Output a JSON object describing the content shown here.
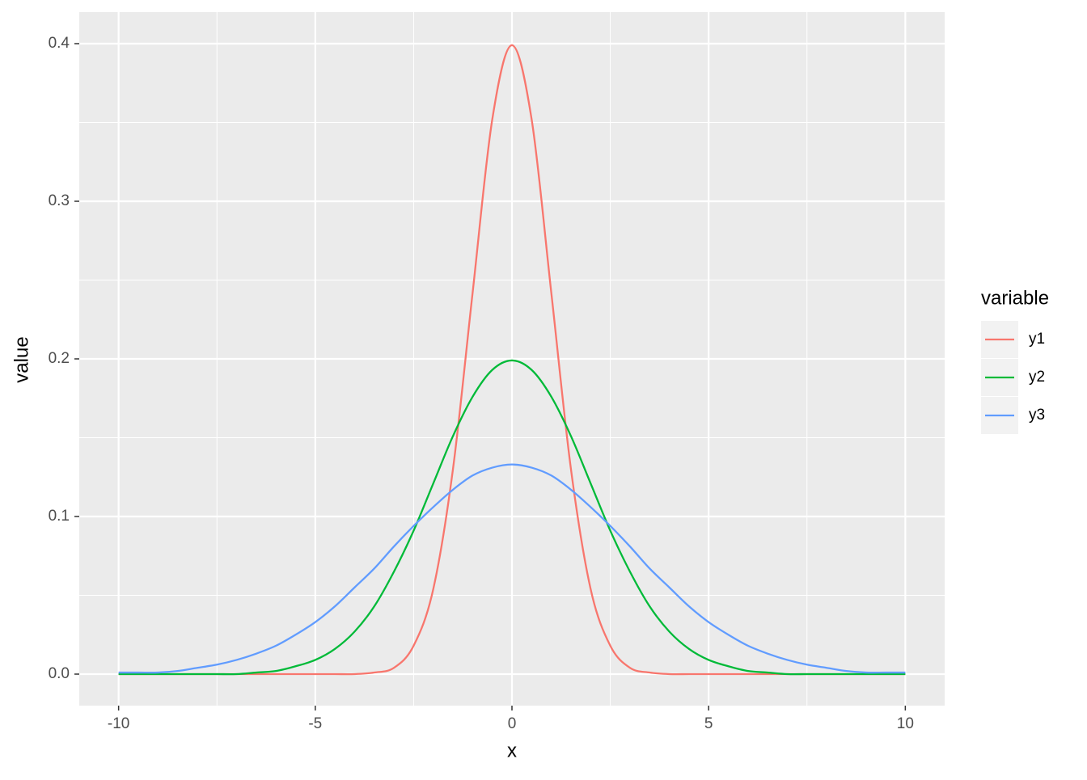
{
  "chart_data": {
    "type": "line",
    "x_label": "x",
    "y_label": "value",
    "legend_title": "variable",
    "x": [
      -10,
      -9.5,
      -9,
      -8.5,
      -8,
      -7.5,
      -7,
      -6.5,
      -6,
      -5.5,
      -5,
      -4.5,
      -4,
      -3.5,
      -3,
      -2.5,
      -2,
      -1.5,
      -1,
      -0.5,
      0,
      0.5,
      1,
      1.5,
      2,
      2.5,
      3,
      3.5,
      4,
      4.5,
      5,
      5.5,
      6,
      6.5,
      7,
      7.5,
      8,
      8.5,
      9,
      9.5,
      10
    ],
    "series": [
      {
        "name": "y1",
        "color": "#F8766D",
        "values": [
          0,
          0,
          0,
          0,
          0,
          0,
          0,
          0,
          0,
          0,
          0,
          0,
          0,
          0.001,
          0.004,
          0.018,
          0.054,
          0.13,
          0.242,
          0.352,
          0.399,
          0.352,
          0.242,
          0.13,
          0.054,
          0.018,
          0.004,
          0.001,
          0,
          0,
          0,
          0,
          0,
          0,
          0,
          0,
          0,
          0,
          0,
          0,
          0
        ]
      },
      {
        "name": "y2",
        "color": "#00BA38",
        "values": [
          0,
          0,
          0,
          0,
          0,
          0,
          0,
          0.001,
          0.002,
          0.005,
          0.009,
          0.016,
          0.027,
          0.043,
          0.065,
          0.091,
          0.121,
          0.151,
          0.176,
          0.193,
          0.199,
          0.193,
          0.176,
          0.151,
          0.121,
          0.091,
          0.065,
          0.043,
          0.027,
          0.016,
          0.009,
          0.005,
          0.002,
          0.001,
          0,
          0,
          0,
          0,
          0,
          0,
          0
        ]
      },
      {
        "name": "y3",
        "color": "#619CFF",
        "values": [
          0.001,
          0.001,
          0.001,
          0.002,
          0.004,
          0.006,
          0.009,
          0.013,
          0.018,
          0.025,
          0.033,
          0.043,
          0.055,
          0.067,
          0.081,
          0.094,
          0.106,
          0.117,
          0.126,
          0.131,
          0.133,
          0.131,
          0.126,
          0.117,
          0.106,
          0.094,
          0.081,
          0.067,
          0.055,
          0.043,
          0.033,
          0.025,
          0.018,
          0.013,
          0.009,
          0.006,
          0.004,
          0.002,
          0.001,
          0.001,
          0.001
        ]
      }
    ],
    "xlim": [
      -11,
      11
    ],
    "xticks": [
      -10,
      -5,
      0,
      5,
      10
    ],
    "ylim": [
      -0.02,
      0.42
    ],
    "yticks": [
      {
        "value": 0,
        "label": "0.0"
      },
      0.1,
      0.2,
      0.3,
      0.4
    ],
    "grid": true,
    "legend": "right"
  }
}
